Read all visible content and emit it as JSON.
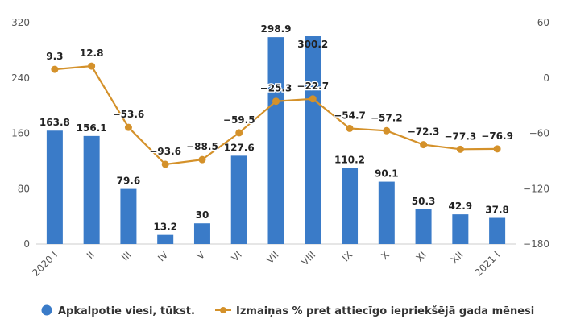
{
  "chart_data": {
    "type": "bar",
    "categories": [
      "2020 I",
      "II",
      "III",
      "IV",
      "V",
      "VI",
      "VII",
      "VIII",
      "IX",
      "X",
      "XI",
      "XII",
      "2021 I"
    ],
    "series": [
      {
        "name": "Apkalpotie viesi, tūkst.",
        "type": "bar",
        "axis": "left",
        "color": "#3a7bc8",
        "values": [
          163.8,
          156.1,
          79.6,
          13.2,
          30,
          127.6,
          298.9,
          300.2,
          110.2,
          90.1,
          50.3,
          42.9,
          37.8
        ],
        "labels": [
          "163.8",
          "156.1",
          "79.6",
          "13.2",
          "30",
          "127.6",
          "298.9",
          "300.2",
          "110.2",
          "90.1",
          "50.3",
          "42.9",
          "37.8"
        ]
      },
      {
        "name": "Izmaiņas % pret attiecīgo iepriekšējā gada mēnesi",
        "type": "line",
        "axis": "right",
        "color": "#d4912a",
        "values": [
          9.3,
          12.8,
          -53.6,
          -93.6,
          -88.5,
          -59.5,
          -25.3,
          -22.7,
          -54.7,
          -57.2,
          -72.3,
          -77.3,
          -76.9
        ],
        "labels": [
          "9.3",
          "12.8",
          "−53.6",
          "−93.6",
          "−88.5",
          "−59.5",
          "−25.3",
          "−22.7",
          "−54.7",
          "−57.2",
          "−72.3",
          "−77.3",
          "−76.9"
        ]
      }
    ],
    "y_left": {
      "min": 0,
      "max": 320,
      "ticks": [
        "0",
        "80",
        "160",
        "240",
        "320"
      ]
    },
    "y_right": {
      "min": -180,
      "max": 60,
      "ticks": [
        "−180",
        "−120",
        "−60",
        "0",
        "60"
      ]
    },
    "legend_position": "bottom",
    "grid": false
  }
}
